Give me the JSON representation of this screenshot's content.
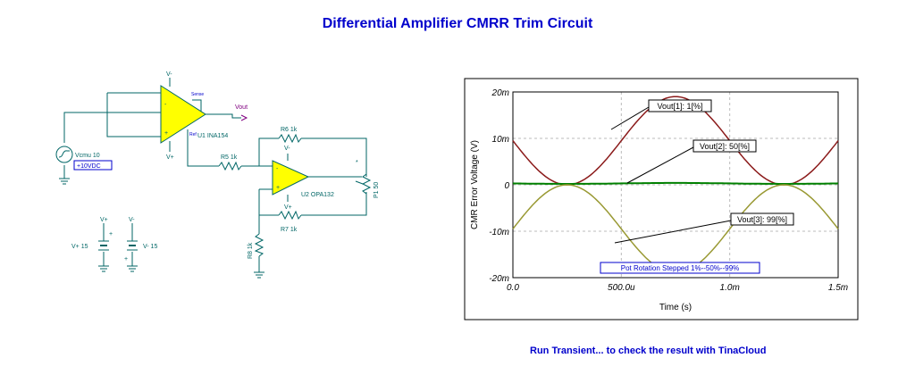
{
  "title": "Differential Amplifier CMRR Trim Circuit",
  "footer": "Run Transient... to check the result with TinaCloud",
  "schematic": {
    "opamp1": {
      "label": "U1 INA154",
      "pin_top": "V-",
      "pin_bottom": "V+",
      "sense": "Sense",
      "ref": "Ref",
      "minus": "-",
      "plus": "+"
    },
    "opamp2": {
      "label": "U2 OPA132",
      "pin_top": "V-",
      "pin_bottom": "V+",
      "minus": "-",
      "plus": "+"
    },
    "vout": "Vout",
    "vcm": {
      "label": "Vcmu 10",
      "box": "+10VDC"
    },
    "r5": "R5 1k",
    "r6": "R6 1k",
    "r7": "R7 1k",
    "r8": "R8 1k",
    "p1": "P1 50",
    "vplus": {
      "label": "V+ 15",
      "node": "V+"
    },
    "vminus": {
      "label": "V- 15",
      "node": "V-"
    },
    "colors": {
      "wire": "#006666",
      "opamp_fill": "#ffff00",
      "label": "#006666",
      "net": "#800080",
      "blue": "#0000cc"
    }
  },
  "chart_data": {
    "type": "line",
    "xlabel": "Time (s)",
    "ylabel": "CMR Error Voltage (V)",
    "xlim": [
      0,
      0.0015
    ],
    "ylim": [
      -0.02,
      0.02
    ],
    "x_ticks": [
      "0.0",
      "500.0u",
      "1.0m",
      "1.5m"
    ],
    "y_ticks": [
      "20m",
      "10m",
      "0",
      "-10m",
      "-20m"
    ],
    "grid": true,
    "annotation": "Pot Rotation Stepped 1%--50%--99%",
    "series": [
      {
        "name": "Vout[1]: 1[%]",
        "color": "#8b1a1a",
        "offset": 0.0095,
        "amplitude": 0.0095,
        "period": 0.001,
        "phase_deg": 0
      },
      {
        "name": "Vout[2]: 50[%]",
        "color": "#008000",
        "offset": 0.0003,
        "amplitude": 0.0001,
        "period": 0.001,
        "phase_deg": 0
      },
      {
        "name": "Vout[3]: 99[%]",
        "color": "#999933",
        "offset": -0.0095,
        "amplitude": 0.0095,
        "period": 0.001,
        "phase_deg": 180
      }
    ]
  }
}
